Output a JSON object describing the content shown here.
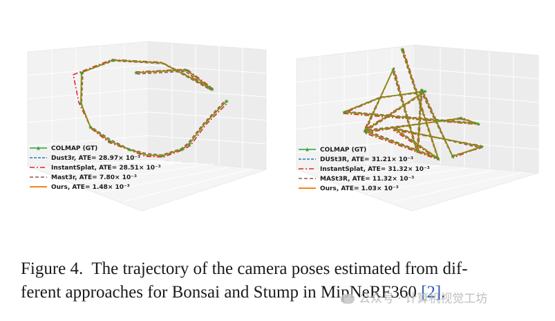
{
  "figure": {
    "caption_label": "Figure 4.",
    "caption_text_1": "The trajectory of the camera poses estimated from dif-",
    "caption_text_2": "ferent approaches for Bonsai and Stump in MipNeRF360 ",
    "citation": "[2]",
    "caption_end": "."
  },
  "watermark": {
    "text": "公众号 · 计算机视觉工坊"
  },
  "colors": {
    "colmap": "#2ca02c",
    "dust3r": "#1f77b4",
    "instantsplat": "#d62728",
    "mast3r": "#8c564b",
    "ours": "#ff7f0e"
  },
  "chart_data": [
    {
      "type": "line",
      "scene": "Bonsai",
      "projection": "3d",
      "legend_position": "lower-left",
      "legend": [
        {
          "key": "colmap",
          "label": "COLMAP (GT)"
        },
        {
          "key": "dust3r",
          "label": "Dust3r, ATE= 28.97× 10⁻³"
        },
        {
          "key": "instantsplat",
          "label": "InstantSplat, ATE= 28.51× 10⁻³"
        },
        {
          "key": "mast3r",
          "label": "Mast3r, ATE= 7.80× 10⁻³"
        },
        {
          "key": "ours",
          "label": "Ours, ATE= 1.48× 10⁻³"
        }
      ]
    },
    {
      "type": "line",
      "scene": "Stump",
      "projection": "3d",
      "legend_position": "lower-left",
      "legend": [
        {
          "key": "colmap",
          "label": "COLMAP (GT)"
        },
        {
          "key": "dust3r",
          "label": "DUSt3R, ATE= 31.21× 10⁻³"
        },
        {
          "key": "instantsplat",
          "label": "InstantSplat, ATE= 31.32× 10⁻³"
        },
        {
          "key": "mast3r",
          "label": "MASt3R, ATE= 11.32× 10⁻³"
        },
        {
          "key": "ours",
          "label": "Ours, ATE= 1.03× 10⁻³"
        }
      ]
    }
  ]
}
